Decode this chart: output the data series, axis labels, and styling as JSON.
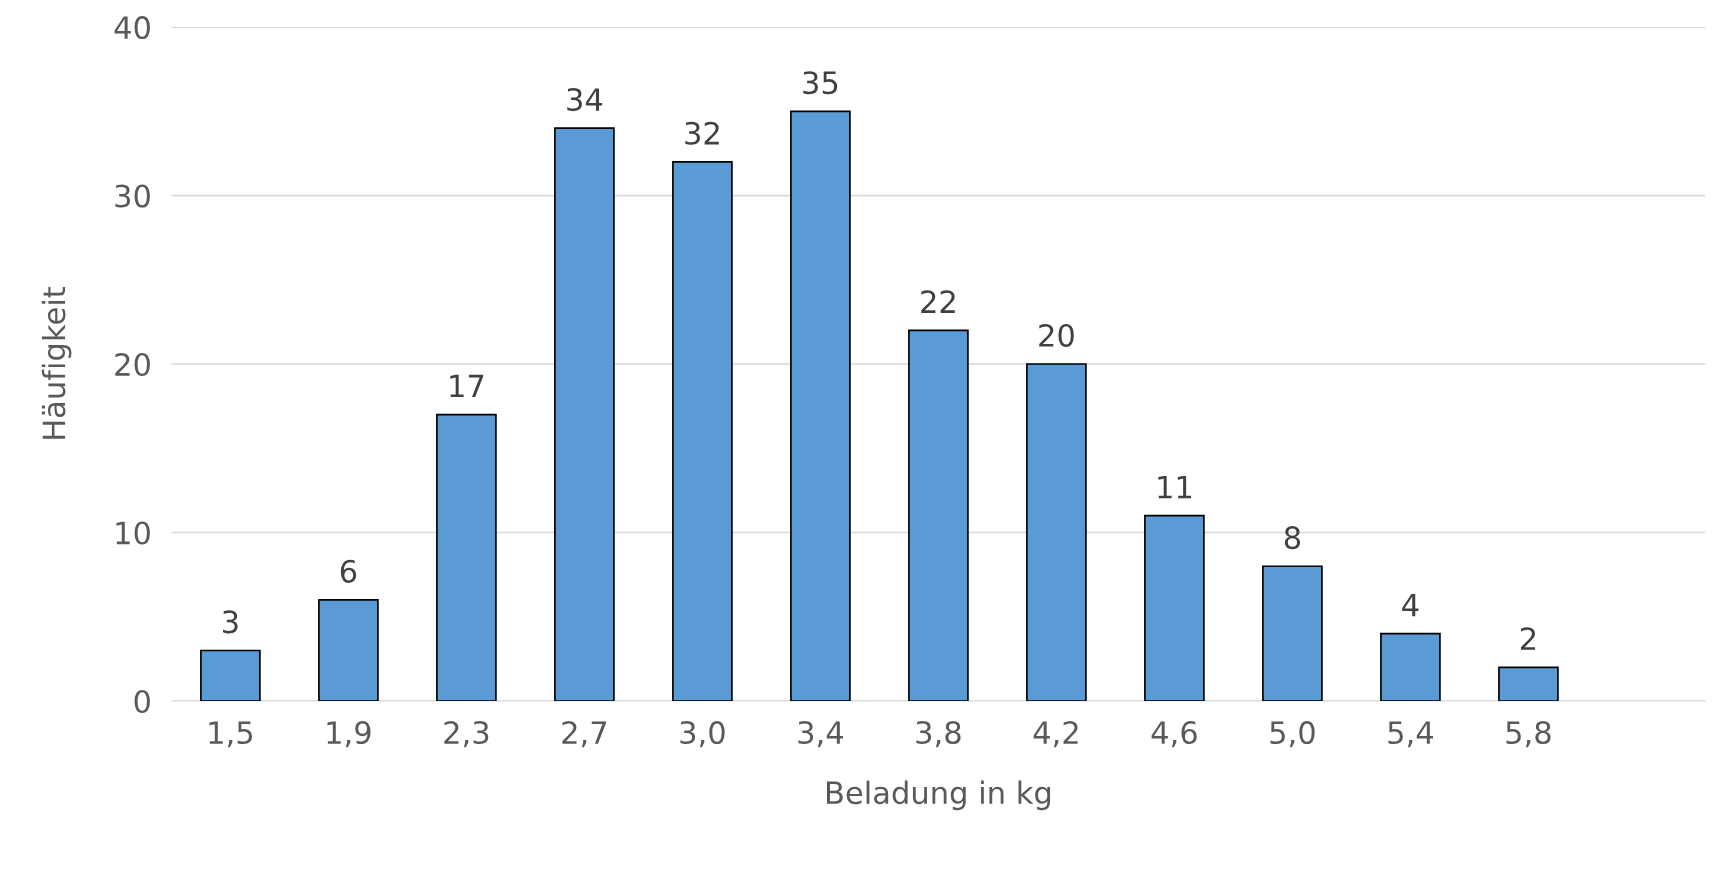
{
  "chart_data": {
    "type": "bar",
    "xlabel": "Beladung in kg",
    "ylabel": "Häufigkeit",
    "categories": [
      "1,5",
      "1,9",
      "2,3",
      "2,7",
      "3,0",
      "3,4",
      "3,8",
      "4,2",
      "4,6",
      "5,0",
      "5,4",
      "5,8",
      null
    ],
    "values": [
      3,
      6,
      17,
      34,
      32,
      35,
      22,
      20,
      11,
      8,
      4,
      2,
      null
    ],
    "color": "#5b9bd5",
    "ylim": [
      0,
      40
    ],
    "yticks": [
      0,
      10,
      20,
      30,
      40
    ],
    "grid": "y",
    "data_labels": true,
    "legend": false
  }
}
